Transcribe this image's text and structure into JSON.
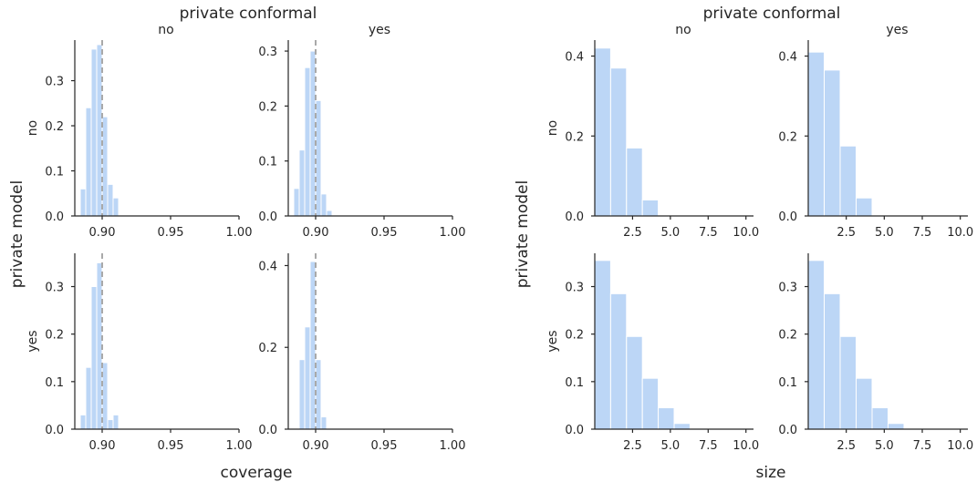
{
  "chart_data": [
    {
      "type": "bar",
      "xlabel": "coverage",
      "col_title": "private conformal",
      "row_title": "private model",
      "col_labels": [
        "no",
        "yes"
      ],
      "row_labels": [
        "no",
        "yes"
      ],
      "xlim": [
        0.88,
        1.0
      ],
      "xticks": [
        "0.90",
        "0.95",
        "1.00"
      ],
      "bin_width": 0.004,
      "reference_line_x": 0.9,
      "bar_color": "#bcd6f6",
      "reference_line_color": "#a9a9a9",
      "panels": [
        {
          "row": "no",
          "col": "no",
          "ylim": [
            0,
            0.39
          ],
          "yticks": [
            "0.0",
            "0.1",
            "0.2",
            "0.3"
          ],
          "bin_centers": [
            0.886,
            0.89,
            0.894,
            0.898,
            0.902,
            0.906,
            0.91,
            0.914
          ],
          "values": [
            0.06,
            0.24,
            0.37,
            0.38,
            0.22,
            0.07,
            0.04,
            0.0
          ]
        },
        {
          "row": "no",
          "col": "yes",
          "ylim": [
            0,
            0.32
          ],
          "yticks": [
            "0.0",
            "0.1",
            "0.2",
            "0.3"
          ],
          "bin_centers": [
            0.886,
            0.89,
            0.894,
            0.898,
            0.902,
            0.906,
            0.91,
            0.914
          ],
          "values": [
            0.05,
            0.12,
            0.27,
            0.3,
            0.21,
            0.04,
            0.01,
            0.0
          ]
        },
        {
          "row": "yes",
          "col": "no",
          "ylim": [
            0,
            0.37
          ],
          "yticks": [
            "0.0",
            "0.1",
            "0.2",
            "0.3"
          ],
          "bin_centers": [
            0.886,
            0.89,
            0.894,
            0.898,
            0.902,
            0.906,
            0.91,
            0.914
          ],
          "values": [
            0.03,
            0.13,
            0.3,
            0.35,
            0.14,
            0.02,
            0.03,
            0.0
          ]
        },
        {
          "row": "yes",
          "col": "yes",
          "ylim": [
            0,
            0.43
          ],
          "yticks": [
            "0.0",
            "0.2",
            "0.4"
          ],
          "bin_centers": [
            0.886,
            0.89,
            0.894,
            0.898,
            0.902,
            0.906,
            0.91,
            0.914
          ],
          "values": [
            0.0,
            0.17,
            0.25,
            0.41,
            0.17,
            0.03,
            0.0,
            0.0
          ]
        }
      ]
    },
    {
      "type": "bar",
      "xlabel": "size",
      "col_title": "private conformal",
      "row_title": "private model",
      "col_labels": [
        "no",
        "yes"
      ],
      "row_labels": [
        "no",
        "yes"
      ],
      "xlim": [
        0,
        10.5
      ],
      "xticks": [
        "2.5",
        "5.0",
        "7.5",
        "10.0"
      ],
      "bin_width": 1.05,
      "bar_color": "#bcd6f6",
      "panels": [
        {
          "row": "no",
          "col": "no",
          "ylim": [
            0,
            0.44
          ],
          "yticks": [
            "0.0",
            "0.2",
            "0.4"
          ],
          "bin_centers": [
            0.525,
            1.575,
            2.625,
            3.675,
            4.725,
            5.775,
            6.825
          ],
          "values": [
            0.42,
            0.37,
            0.17,
            0.04,
            0.0,
            0.0,
            0.0
          ]
        },
        {
          "row": "no",
          "col": "yes",
          "ylim": [
            0,
            0.44
          ],
          "yticks": [
            "0.0",
            "0.2",
            "0.4"
          ],
          "bin_centers": [
            0.525,
            1.575,
            2.625,
            3.675,
            4.725,
            5.775,
            6.825
          ],
          "values": [
            0.41,
            0.365,
            0.175,
            0.045,
            0.0,
            0.0,
            0.0
          ]
        },
        {
          "row": "yes",
          "col": "no",
          "ylim": [
            0,
            0.37
          ],
          "yticks": [
            "0.0",
            "0.1",
            "0.2",
            "0.3"
          ],
          "bin_centers": [
            0.525,
            1.575,
            2.625,
            3.675,
            4.725,
            5.775,
            6.825
          ],
          "values": [
            0.355,
            0.285,
            0.195,
            0.107,
            0.045,
            0.012,
            0.0
          ]
        },
        {
          "row": "yes",
          "col": "yes",
          "ylim": [
            0,
            0.37
          ],
          "yticks": [
            "0.0",
            "0.1",
            "0.2",
            "0.3"
          ],
          "bin_centers": [
            0.525,
            1.575,
            2.625,
            3.675,
            4.725,
            5.775,
            6.825
          ],
          "values": [
            0.355,
            0.285,
            0.195,
            0.107,
            0.045,
            0.012,
            0.0
          ]
        }
      ]
    }
  ]
}
